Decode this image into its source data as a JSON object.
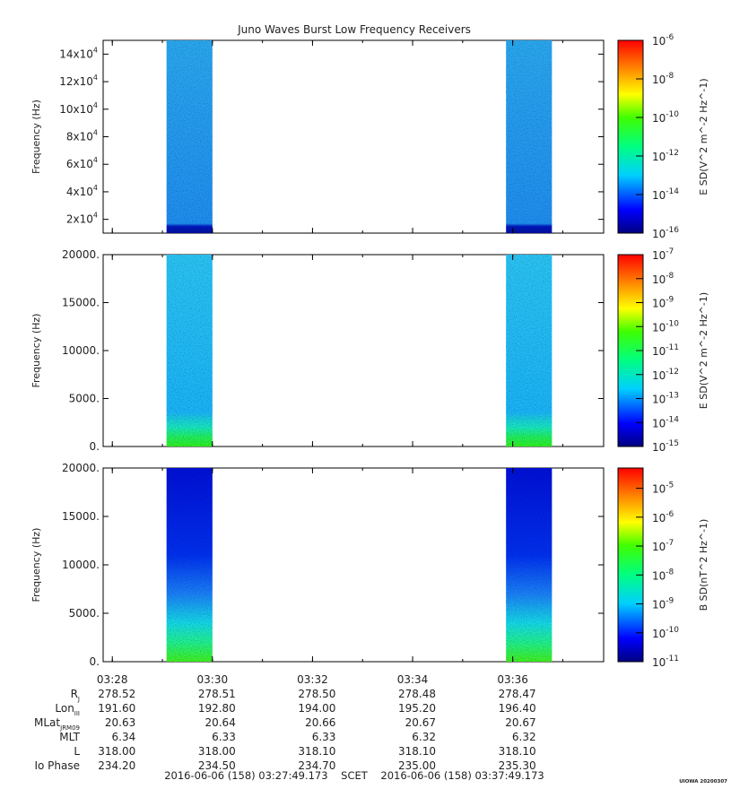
{
  "title": "Juno Waves Burst Low Frequency Receivers",
  "chart_data": [
    {
      "type": "heatmap",
      "ylabel": "Frequency (Hz)",
      "yticks": [
        {
          "v": 20000,
          "m": "2x10",
          "e": "4"
        },
        {
          "v": 40000,
          "m": "4x10",
          "e": "4"
        },
        {
          "v": 60000,
          "m": "6x10",
          "e": "4"
        },
        {
          "v": 80000,
          "m": "8x10",
          "e": "4"
        },
        {
          "v": 100000,
          "m": "10x10",
          "e": "4"
        },
        {
          "v": 120000,
          "m": "12x10",
          "e": "4"
        },
        {
          "v": 140000,
          "m": "14x10",
          "e": "4"
        }
      ],
      "ylim": [
        10000,
        150000
      ],
      "bursts": [
        {
          "start": "03:29:05",
          "end": "03:30:00",
          "band": "low-freq edge dark blue"
        },
        {
          "start": "03:35:52",
          "end": "03:36:47",
          "band": "low-freq edge dark blue"
        }
      ],
      "colorbar": {
        "label": "E SD(V^2 m^-2 Hz^-1)",
        "ticks": [
          {
            "m": "10",
            "e": "-6"
          },
          {
            "m": "10",
            "e": "-8"
          },
          {
            "m": "10",
            "e": "-10"
          },
          {
            "m": "10",
            "e": "-12"
          },
          {
            "m": "10",
            "e": "-14"
          },
          {
            "m": "10",
            "e": "-16"
          }
        ],
        "range_log10": [
          -16,
          -6
        ]
      }
    },
    {
      "type": "heatmap",
      "ylabel": "Frequency (Hz)",
      "yticks": [
        {
          "v": 0,
          "t": "0."
        },
        {
          "v": 5000,
          "t": "5000."
        },
        {
          "v": 10000,
          "t": "10000."
        },
        {
          "v": 15000,
          "t": "15000."
        },
        {
          "v": 20000,
          "t": "20000."
        }
      ],
      "ylim": [
        0,
        20000
      ],
      "bursts": [
        {
          "start": "03:29:05",
          "end": "03:30:00",
          "band": "low-freq edge green"
        },
        {
          "start": "03:35:52",
          "end": "03:36:47",
          "band": "low-freq edge green"
        }
      ],
      "colorbar": {
        "label": "E SD(V^2 m^-2 Hz^-1)",
        "ticks": [
          {
            "m": "10",
            "e": "-7"
          },
          {
            "m": "10",
            "e": "-8"
          },
          {
            "m": "10",
            "e": "-9"
          },
          {
            "m": "10",
            "e": "-10"
          },
          {
            "m": "10",
            "e": "-11"
          },
          {
            "m": "10",
            "e": "-12"
          },
          {
            "m": "10",
            "e": "-13"
          },
          {
            "m": "10",
            "e": "-14"
          },
          {
            "m": "10",
            "e": "-15"
          }
        ],
        "range_log10": [
          -15,
          -7
        ]
      }
    },
    {
      "type": "heatmap",
      "ylabel": "Frequency (Hz)",
      "yticks": [
        {
          "v": 0,
          "t": "0."
        },
        {
          "v": 5000,
          "t": "5000."
        },
        {
          "v": 10000,
          "t": "10000."
        },
        {
          "v": 15000,
          "t": "15000."
        },
        {
          "v": 20000,
          "t": "20000."
        }
      ],
      "ylim": [
        0,
        20000
      ],
      "bursts": [
        {
          "start": "03:29:05",
          "end": "03:30:00",
          "band": "gradient dark blue top to green bottom"
        },
        {
          "start": "03:35:52",
          "end": "03:36:47",
          "band": "gradient dark blue top to green bottom"
        }
      ],
      "colorbar": {
        "label": "B SD(nT^2 Hz^-1)",
        "ticks": [
          {
            "m": "10",
            "e": "-5"
          },
          {
            "m": "10",
            "e": "-6"
          },
          {
            "m": "10",
            "e": "-7"
          },
          {
            "m": "10",
            "e": "-8"
          },
          {
            "m": "10",
            "e": "-9"
          },
          {
            "m": "10",
            "e": "-10"
          },
          {
            "m": "10",
            "e": "-11"
          }
        ],
        "range_log10": [
          -11,
          -4.3
        ]
      }
    }
  ],
  "xaxis": {
    "range": [
      "03:27:49",
      "03:37:49"
    ],
    "ticks": [
      "03:28",
      "03:30",
      "03:32",
      "03:34",
      "03:36"
    ],
    "tick_minutes": [
      28,
      30,
      32,
      34,
      36
    ]
  },
  "ephemeris": {
    "rows": [
      {
        "label": "R",
        "sub": "J",
        "values": [
          "278.52",
          "278.51",
          "278.50",
          "278.48",
          "278.47"
        ]
      },
      {
        "label": "Lon",
        "sub": "III",
        "values": [
          "191.60",
          "192.80",
          "194.00",
          "195.20",
          "196.40"
        ]
      },
      {
        "label": "MLat",
        "sub": "JRM09",
        "values": [
          "20.63",
          "20.64",
          "20.66",
          "20.67",
          "20.67"
        ]
      },
      {
        "label": "MLT",
        "sub": "",
        "values": [
          "6.34",
          "6.33",
          "6.33",
          "6.32",
          "6.32"
        ]
      },
      {
        "label": "L",
        "sub": "",
        "values": [
          "318.00",
          "318.00",
          "318.10",
          "318.10",
          "318.10"
        ]
      },
      {
        "label": "Io Phase",
        "sub": "",
        "values": [
          "234.20",
          "234.50",
          "234.70",
          "235.00",
          "235.30"
        ]
      }
    ]
  },
  "footer": {
    "range_text": "2016-06-06 (158) 03:27:49.173    SCET    2016-06-06 (158) 03:37:49.173",
    "stamp": "UIOWA 20200307"
  }
}
